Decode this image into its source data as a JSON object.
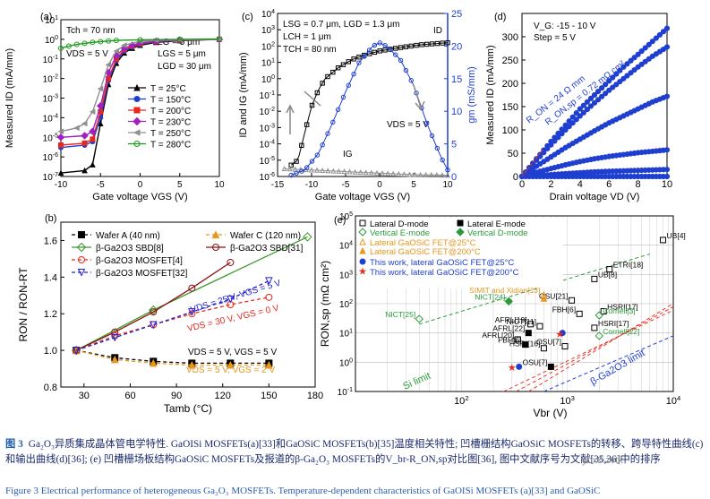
{
  "chart_data": [
    {
      "panel": "(a)",
      "type": "line",
      "xlabel": "Gate voltage V_GS (V)",
      "ylabel": "Measured I_D (mA/mm)",
      "xlim": [
        -10,
        10
      ],
      "ylim_log": [
        1e-07,
        10
      ],
      "x_ticks": [
        "-10",
        "-5",
        "0",
        "5",
        "10"
      ],
      "y_ticks": [
        "10^-7",
        "10^-6",
        "10^-5",
        "10^-4",
        "10^-3",
        "10^-2",
        "10^-1",
        "10^0",
        "10^1"
      ],
      "annotations": [
        "T_ch = 70 nm",
        "L_G = 5 μm",
        "L_GS = 5 μm",
        "L_GD = 30 μm",
        "V_DS = 5 V"
      ],
      "series": [
        {
          "name": "T = 25°C",
          "color": "#000000",
          "marker": "triangle-up",
          "x": [
            -10,
            -7,
            -6,
            -5,
            -4,
            -3,
            -2,
            -1,
            0,
            2,
            5,
            10
          ],
          "y": [
            1.5e-07,
            2e-07,
            4e-07,
            5e-05,
            0.005,
            0.06,
            0.2,
            0.35,
            0.5,
            0.7,
            0.85,
            1.0
          ]
        },
        {
          "name": "T = 150°C",
          "color": "#1f3fd0",
          "marker": "circle",
          "x": [
            -10,
            -7,
            -6,
            -5,
            -4,
            -3,
            -2,
            -1,
            0,
            2,
            5,
            10
          ],
          "y": [
            3e-06,
            4e-06,
            6e-06,
            0.0001,
            0.008,
            0.08,
            0.25,
            0.4,
            0.55,
            0.75,
            0.9,
            1.0
          ]
        },
        {
          "name": "T = 200°C",
          "color": "#e8281c",
          "marker": "square",
          "x": [
            -10,
            -7,
            -6,
            -5,
            -4,
            -3,
            -2,
            -1,
            0,
            2,
            5,
            10
          ],
          "y": [
            4e-06,
            5e-06,
            8e-06,
            0.0002,
            0.01,
            0.1,
            0.3,
            0.45,
            0.6,
            0.78,
            0.9,
            1.0
          ]
        },
        {
          "name": "T = 230°C",
          "color": "#a020c0",
          "marker": "diamond",
          "x": [
            -10,
            -7,
            -6,
            -5,
            -4,
            -3,
            -2,
            -1,
            0,
            2,
            5,
            10
          ],
          "y": [
            1e-05,
            1.2e-05,
            2e-05,
            0.0004,
            0.02,
            0.15,
            0.35,
            0.5,
            0.65,
            0.8,
            0.92,
            1.0
          ]
        },
        {
          "name": "T = 250°C",
          "color": "#909090",
          "marker": "triangle-left",
          "x": [
            -10,
            -8,
            -7,
            -6,
            -5,
            -4,
            -3,
            -2,
            0,
            2,
            5,
            10
          ],
          "y": [
            2e-05,
            3e-05,
            5e-05,
            0.0002,
            0.003,
            0.05,
            0.25,
            0.5,
            0.8,
            0.9,
            0.95,
            1.0
          ]
        },
        {
          "name": "T = 280°C",
          "color": "#1a9a1a",
          "marker": "circle-open",
          "x": [
            -10,
            -9,
            -8,
            -7,
            -6,
            -5,
            -4,
            -3,
            0,
            5,
            10
          ],
          "y": [
            0.35,
            0.45,
            0.55,
            0.62,
            0.7,
            0.76,
            0.82,
            0.88,
            0.95,
            1.0,
            1.05
          ]
        }
      ]
    },
    {
      "panel": "(c)",
      "type": "line",
      "xlabel": "Gate voltage V_GS (V)",
      "ylabel": "I_D and I_G (mA/mm)",
      "ylabel_right": "g_m (mS/mm)",
      "xlim": [
        -15,
        10
      ],
      "ylim_log": [
        1e-06,
        10000.0
      ],
      "ylim_right": [
        0,
        25
      ],
      "x_ticks": [
        "-15",
        "-10",
        "-5",
        "0",
        "5",
        "10"
      ],
      "y_ticks": [
        "10^-6",
        "10^-5",
        "10^-4",
        "10^-3",
        "10^-2",
        "10^-1",
        "10^0",
        "10^1",
        "10^2",
        "10^3",
        "10^4"
      ],
      "y_ticks_right": [
        "0",
        "5",
        "10",
        "15",
        "20",
        "25"
      ],
      "annotations": [
        "L_SG = 0.7 μm, L_GD = 1.3 μm",
        "L_CH = 1 μm",
        "T_CH = 80 nm",
        "I_D",
        "V_DS = 5 V",
        "I_G"
      ],
      "series": [
        {
          "name": "I_D",
          "color": "#000000",
          "marker": "square-open",
          "x": [
            -13,
            -12,
            -11,
            -10,
            -9,
            -8,
            -6,
            -4,
            -2,
            0,
            3,
            6,
            10
          ],
          "y": [
            5e-06,
            1e-05,
            0.0005,
            0.02,
            0.2,
            1,
            5,
            15,
            30,
            50,
            80,
            120,
            160
          ]
        },
        {
          "name": "I_G",
          "color": "#909090",
          "marker": "triangle-open",
          "x": [
            -14,
            -10,
            -5,
            0,
            5,
            10
          ],
          "y": [
            3e-06,
            2.5e-06,
            2e-06,
            1.6e-06,
            1.3e-06,
            1.2e-06
          ]
        },
        {
          "name": "g_m",
          "color": "#1f3fd0",
          "marker": "circle-open",
          "axis": "right",
          "x": [
            -13,
            -11,
            -9,
            -7,
            -5,
            -3,
            -1,
            0,
            1,
            3,
            5,
            7,
            9,
            10
          ],
          "y": [
            0.2,
            1,
            3.5,
            8,
            13,
            17.5,
            20,
            20.5,
            20,
            18,
            14,
            8,
            3,
            1
          ]
        }
      ]
    },
    {
      "panel": "(d)",
      "type": "line",
      "xlabel": "Drain voltage V_D (V)",
      "ylabel": "Measured I_D (mA/mm)",
      "xlim": [
        0,
        10
      ],
      "ylim": [
        0,
        350
      ],
      "x_ticks": [
        "0",
        "2",
        "4",
        "6",
        "8",
        "10"
      ],
      "y_ticks": [
        "0",
        "50",
        "100",
        "150",
        "200",
        "250",
        "300"
      ],
      "annotations": [
        "V_G: -15 - 10 V",
        "Step = 5 V",
        "R_ON = 24 Ω mm",
        "R_ON,sp = 0.72 mΩ cm²"
      ],
      "series": [
        {
          "name": "V_G = 10 V",
          "color": "#1f3fd0",
          "x": [
            0,
            1,
            2,
            3,
            4,
            5,
            6,
            7,
            8,
            9,
            10
          ],
          "y": [
            0,
            38,
            75,
            110,
            145,
            175,
            205,
            235,
            262,
            290,
            318
          ]
        },
        {
          "name": "V_G = 5 V",
          "color": "#1f3fd0",
          "x": [
            0,
            1,
            2,
            3,
            4,
            5,
            6,
            7,
            8,
            9,
            10
          ],
          "y": [
            0,
            35,
            68,
            100,
            130,
            158,
            185,
            210,
            235,
            258,
            278
          ]
        },
        {
          "name": "V_G = 0 V",
          "color": "#1f3fd0",
          "x": [
            0,
            1,
            2,
            3,
            4,
            5,
            6,
            7,
            8,
            9,
            10
          ],
          "y": [
            0,
            22,
            42,
            62,
            80,
            98,
            115,
            130,
            145,
            160,
            172
          ]
        },
        {
          "name": "V_G = -5 V",
          "color": "#1f3fd0",
          "x": [
            0,
            1,
            2,
            3,
            4,
            5,
            6,
            7,
            8,
            9,
            10
          ],
          "y": [
            0,
            9,
            17,
            25,
            32,
            38,
            43,
            47,
            51,
            54,
            57
          ]
        },
        {
          "name": "V_G = -10 V",
          "color": "#1f3fd0",
          "x": [
            0,
            1,
            2,
            3,
            4,
            5,
            6,
            7,
            8,
            9,
            10
          ],
          "y": [
            0,
            2,
            4,
            6,
            8,
            10,
            11,
            12,
            13,
            14,
            15
          ]
        },
        {
          "name": "V_G = -15 V",
          "color": "#1f3fd0",
          "x": [
            0,
            1,
            2,
            3,
            4,
            5,
            6,
            7,
            8,
            9,
            10
          ],
          "y": [
            0,
            0,
            0,
            0,
            0,
            0,
            0,
            0,
            0,
            0,
            0
          ]
        }
      ]
    },
    {
      "panel": "(b)",
      "type": "line",
      "xlabel": "T_amb (°C)",
      "ylabel": "R_ON / R_ON-RT",
      "xlim": [
        15,
        180
      ],
      "ylim": [
        0.8,
        1.7
      ],
      "x_ticks": [
        "30",
        "60",
        "90",
        "120",
        "150",
        "180"
      ],
      "y_ticks": [
        "0.8",
        "1.0",
        "1.2",
        "1.4",
        "1.6"
      ],
      "annotations": [
        "V_DS = 25 V, V_GS = 5 V",
        "V_DS = 30 V, V_GS = 0 V",
        "V_DS = 5 V, V_GS = 5 V",
        "V_DS = 5 V, V_GS = 2 V"
      ],
      "series": [
        {
          "name": "Wafer A (40 nm)",
          "color": "#000000",
          "marker": "square",
          "dash": true,
          "x": [
            25,
            50,
            75,
            100,
            125,
            150
          ],
          "y": [
            1.0,
            0.96,
            0.94,
            0.93,
            0.93,
            0.93
          ]
        },
        {
          "name": "Wafer C (120 nm)",
          "color": "#e8961c",
          "marker": "triangle-up",
          "dash": true,
          "x": [
            25,
            50,
            75,
            100,
            125,
            150
          ],
          "y": [
            1.0,
            0.95,
            0.93,
            0.92,
            0.92,
            0.92
          ]
        },
        {
          "name": "β-Ga2O3 SBD[8]",
          "color": "#3a9a2a",
          "marker": "diamond-open",
          "dash": false,
          "x": [
            25,
            75,
            175
          ],
          "y": [
            1.0,
            1.22,
            1.62
          ]
        },
        {
          "name": "β-Ga2O3 SBD[31]",
          "color": "#8a1010",
          "marker": "circle-open",
          "dash": false,
          "x": [
            25,
            50,
            75,
            100,
            125
          ],
          "y": [
            1.0,
            1.1,
            1.21,
            1.34,
            1.48
          ]
        },
        {
          "name": "β-Ga2O3 MOSFET[4]",
          "color": "#e8281c",
          "marker": "circle-open",
          "dash": true,
          "x": [
            25,
            50,
            75,
            100,
            125,
            150
          ],
          "y": [
            1.0,
            1.08,
            1.14,
            1.2,
            1.25,
            1.29
          ]
        },
        {
          "name": "β-Ga2O3 MOSFET[32]",
          "color": "#2020d0",
          "marker": "triangle-down-open",
          "dash": true,
          "x": [
            25,
            50,
            75,
            100,
            125,
            150
          ],
          "y": [
            1.0,
            1.07,
            1.14,
            1.21,
            1.28,
            1.38
          ]
        }
      ]
    },
    {
      "panel": "(e)",
      "type": "scatter",
      "xlabel": "V_br (V)",
      "ylabel": "R_ON,sp (mΩ cm²)",
      "xlim_log": [
        10,
        10000
      ],
      "ylim_log": [
        0.1,
        100000
      ],
      "x_ticks": [
        "10^2",
        "10^3",
        "10^4"
      ],
      "y_ticks": [
        "10^-1",
        "10^0",
        "10^1",
        "10^2",
        "10^3",
        "10^4",
        "10^5"
      ],
      "legend": [
        "Lateral D-mode",
        "Lateral E-mode",
        "Vertical E-mode",
        "Vertical D-mode",
        "Lateral GaOSiC FET@25°C",
        "Lateral GaOSiC FET@200°C",
        "This work, lateral GaOSiC FET@25°C",
        "This work, lateral GaOSiC FET@200°C"
      ],
      "limit_labels": [
        "Si limit",
        "β-Ga2O3 limit"
      ],
      "points": [
        {
          "label": "UB[4]",
          "x": 8000,
          "y": 15000,
          "group": "Lateral D-mode"
        },
        {
          "label": "ETRI[18]",
          "x": 2500,
          "y": 1500,
          "group": "Lateral D-mode"
        },
        {
          "label": "UB[8]",
          "x": 1800,
          "y": 700,
          "group": "Lateral D-mode"
        },
        {
          "label": "OSU[21]",
          "x": 1100,
          "y": 130,
          "group": "Lateral D-mode"
        },
        {
          "label": "FBH[6]",
          "x": 1300,
          "y": 45,
          "group": "Lateral D-mode"
        },
        {
          "label": "HSRI[17]",
          "x": 2200,
          "y": 55,
          "group": "Lateral D-mode"
        },
        {
          "label": "HSRI[17]",
          "x": 1800,
          "y": 15,
          "group": "Lateral D-mode"
        },
        {
          "label": "Cornell[3]",
          "x": 2000,
          "y": 40,
          "group": "Vertical E-mode"
        },
        {
          "label": "Cornell[22]",
          "x": 2000,
          "y": 8,
          "group": "Vertical E-mode"
        },
        {
          "label": "NICT[11]",
          "x": 550,
          "y": 17,
          "group": "Lateral D-mode"
        },
        {
          "label": "AFRL[19]",
          "x": 450,
          "y": 20,
          "group": "Lateral D-mode"
        },
        {
          "label": "AFRL[22]",
          "x": 430,
          "y": 10,
          "group": "Lateral E-mode"
        },
        {
          "label": "AFRL[20]",
          "x": 340,
          "y": 6,
          "group": "Lateral D-mode"
        },
        {
          "label": "FBH[6]",
          "x": 400,
          "y": 4,
          "group": "Lateral E-mode"
        },
        {
          "label": "HSRI[16]",
          "x": 600,
          "y": 3,
          "group": "Lateral D-mode"
        },
        {
          "label": "OSU[7]",
          "x": 950,
          "y": 3.5,
          "group": "Lateral D-mode"
        },
        {
          "label": "OSU[7]",
          "x": 700,
          "y": 0.7,
          "group": "Lateral E-mode"
        },
        {
          "label": "NICT[24]",
          "x": 280,
          "y": 120,
          "group": "Vertical D-mode"
        },
        {
          "label": "NICT[25]",
          "x": 40,
          "y": 30,
          "group": "Vertical E-mode"
        },
        {
          "label": "SIMIT and Xidian[13]",
          "x": 600,
          "y": 200,
          "group": "Lateral GaOSiC FET@25°C"
        },
        {
          "label": "",
          "x": 600,
          "y": 150,
          "group": "Lateral GaOSiC FET@200°C"
        },
        {
          "label": "",
          "x": 900,
          "y": 10,
          "group": "This work, lateral GaOSiC FET@25°C"
        },
        {
          "label": "",
          "x": 350,
          "y": 0.7,
          "group": "This work, lateral GaOSiC FET@25°C"
        },
        {
          "label": "",
          "x": 850,
          "y": 9,
          "group": "This work, lateral GaOSiC FET@200°C"
        },
        {
          "label": "",
          "x": 300,
          "y": 0.65,
          "group": "This work, lateral GaOSiC FET@200°C"
        }
      ]
    }
  ],
  "caption": {
    "label": "图 3",
    "text": "Ga₂O₃异质集成晶体管电学特性. GaOISi MOSFETs(a)[33]和GaOSiC MOSFETs(b)[35]温度相关特性; 凹槽栅结构GaOSiC MOSFETs的转移、跨导特性曲线(c)和输出曲线(d)[36]; (e) 凹槽栅场板结构GaOSiC MOSFETs及报道的β-Ga₂O₃ MOSFETs的V_br-R_ON,sp对比图[36], 图中文献序号为文献[35,36]中的排序",
    "line3": "Figure 3  Electrical performance of heterogeneous Ga₂O₃ MOSFETs. Temperature-dependent characteristics of GaOISi MOSFETs (a)[33] and GaOSiC"
  },
  "watermark": "ybx8.zvtk"
}
